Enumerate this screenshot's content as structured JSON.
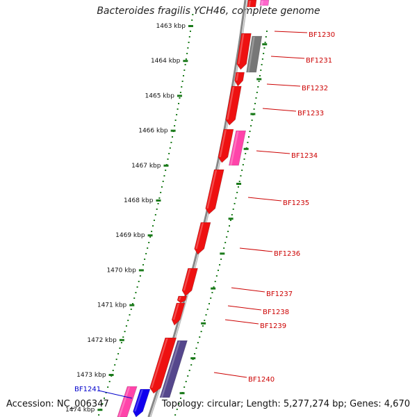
{
  "title": "Bacteroides fragilis YCH46, complete genome",
  "accession": "Accession: NC_006347",
  "topology": "Topology: circular; Length: 5,277,274 bp; Genes: 4,670",
  "scale_ticks": [
    {
      "label": "1463 kbp"
    },
    {
      "label": "1464 kbp"
    },
    {
      "label": "1465 kbp"
    },
    {
      "label": "1466 kbp"
    },
    {
      "label": "1467 kbp"
    },
    {
      "label": "1468 kbp"
    },
    {
      "label": "1469 kbp"
    },
    {
      "label": "1470 kbp"
    },
    {
      "label": "1471 kbp"
    },
    {
      "label": "1472 kbp"
    },
    {
      "label": "1473 kbp"
    },
    {
      "label": "1474 kbp"
    }
  ],
  "genes": [
    {
      "id": "BF1230",
      "color": "#ff66cc"
    },
    {
      "id": "BF1231",
      "color": "#777777"
    },
    {
      "id": "BF1232",
      "color": "#ee1111"
    },
    {
      "id": "BF1233",
      "color": "#ee1111"
    },
    {
      "id": "BF1234",
      "color": "#ff44aa"
    },
    {
      "id": "BF1235",
      "color": "#ee1111"
    },
    {
      "id": "BF1236",
      "color": "#ee1111"
    },
    {
      "id": "BF1237",
      "color": "#ee1111"
    },
    {
      "id": "BF1238",
      "color": "#ee1111"
    },
    {
      "id": "BF1239",
      "color": "#ee1111"
    },
    {
      "id": "BF1240",
      "color": "#55478c"
    },
    {
      "id": "BF1241",
      "color": "#ff44aa"
    }
  ],
  "colors": {
    "label_red": "#cc0000",
    "label_blue": "#0000cc",
    "tick_green": "#1a7a1a",
    "backbone": "#888888",
    "cds_red": "#ee1111",
    "cds_blue": "#1100ee"
  }
}
